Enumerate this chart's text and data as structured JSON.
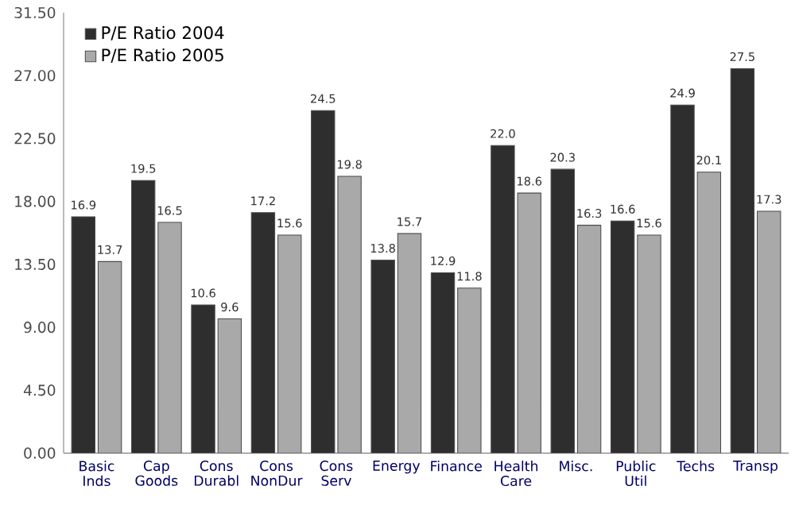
{
  "chart_data": {
    "type": "bar",
    "categories": [
      "Basic Inds",
      "Cap Goods",
      "Cons Durabl",
      "Cons NonDur",
      "Cons Serv",
      "Energy",
      "Finance",
      "Health Care",
      "Misc.",
      "Public Util",
      "Techs",
      "Transp"
    ],
    "series": [
      {
        "name": "P/E Ratio 2004",
        "color": "#2e2e2e",
        "values": [
          16.9,
          19.5,
          10.6,
          17.2,
          24.5,
          13.8,
          12.9,
          22.0,
          20.3,
          16.6,
          24.9,
          27.5
        ],
        "value_labels": [
          "16.9",
          "19.5",
          "10.6",
          "17.2",
          "24.5",
          "13.8",
          "12.9",
          "22.0",
          "20.3",
          "16.6",
          "24.9",
          "27.5"
        ]
      },
      {
        "name": "P/E Ratio 2005",
        "color": "#a9a9a9",
        "values": [
          13.7,
          16.5,
          9.6,
          15.6,
          19.8,
          15.7,
          11.8,
          18.6,
          16.3,
          15.6,
          20.1,
          17.3
        ],
        "value_labels": [
          "13.7",
          "16.5",
          "9.6",
          "15.6",
          "19.8",
          "15.7",
          "11.8",
          "18.6",
          "16.3",
          "15.6",
          "20.1",
          "17.3"
        ]
      }
    ],
    "ylim": [
      0,
      31.5
    ],
    "yticks": [
      {
        "value": 0,
        "label": "0.00"
      },
      {
        "value": 4.5,
        "label": "4.50"
      },
      {
        "value": 9,
        "label": "9.00"
      },
      {
        "value": 13.5,
        "label": "13.50"
      },
      {
        "value": 18,
        "label": "18.00"
      },
      {
        "value": 22.5,
        "label": "22.50"
      },
      {
        "value": 27,
        "label": "27.00"
      },
      {
        "value": 31.5,
        "label": "31.50"
      }
    ],
    "grid": false,
    "legend": "top left"
  }
}
